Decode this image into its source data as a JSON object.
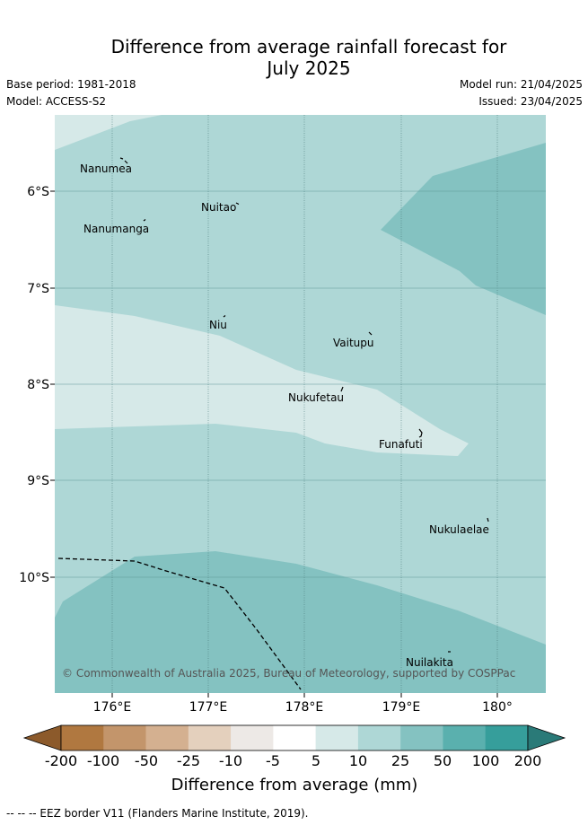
{
  "title_line1": "Difference from average rainfall forecast for",
  "title_line2": "July 2025",
  "base_period": "Base period: 1981-2018",
  "model": "Model: ACCESS-S2",
  "model_run": "Model run: 21/04/2025",
  "issued": "Issued: 23/04/2025",
  "credit": "© Commonwealth of Australia 2025, Bureau of Meteorology, supported by COSPPac",
  "lat_ticks": [
    "6°S",
    "7°S",
    "8°S",
    "9°S",
    "10°S"
  ],
  "lon_ticks": [
    "176°E",
    "177°E",
    "178°E",
    "179°E",
    "180°"
  ],
  "places": [
    "Nanumea",
    "Nuitao",
    "Nanumanga",
    "Niu",
    "Vaitupu",
    "Nukufetau",
    "Funafuti",
    "Nukulaelae",
    "Nuilakita"
  ],
  "colorbar": {
    "title": "Difference from average (mm)",
    "labels": [
      "-200",
      "-100",
      "-50",
      "-25",
      "-10",
      "-5",
      "5",
      "10",
      "25",
      "50",
      "100",
      "200"
    ],
    "colors": [
      "#8c5a2b",
      "#b07840",
      "#c3956b",
      "#d4b090",
      "#e4d0bd",
      "#ede9e6",
      "#ffffff",
      "#d6e9e8",
      "#aed7d6",
      "#84c2c1",
      "#5ab0ae",
      "#369e9b",
      "#2a7a78"
    ]
  },
  "footer": "--  --  -- EEZ border V11 (Flanders Marine Institute, 2019)."
}
